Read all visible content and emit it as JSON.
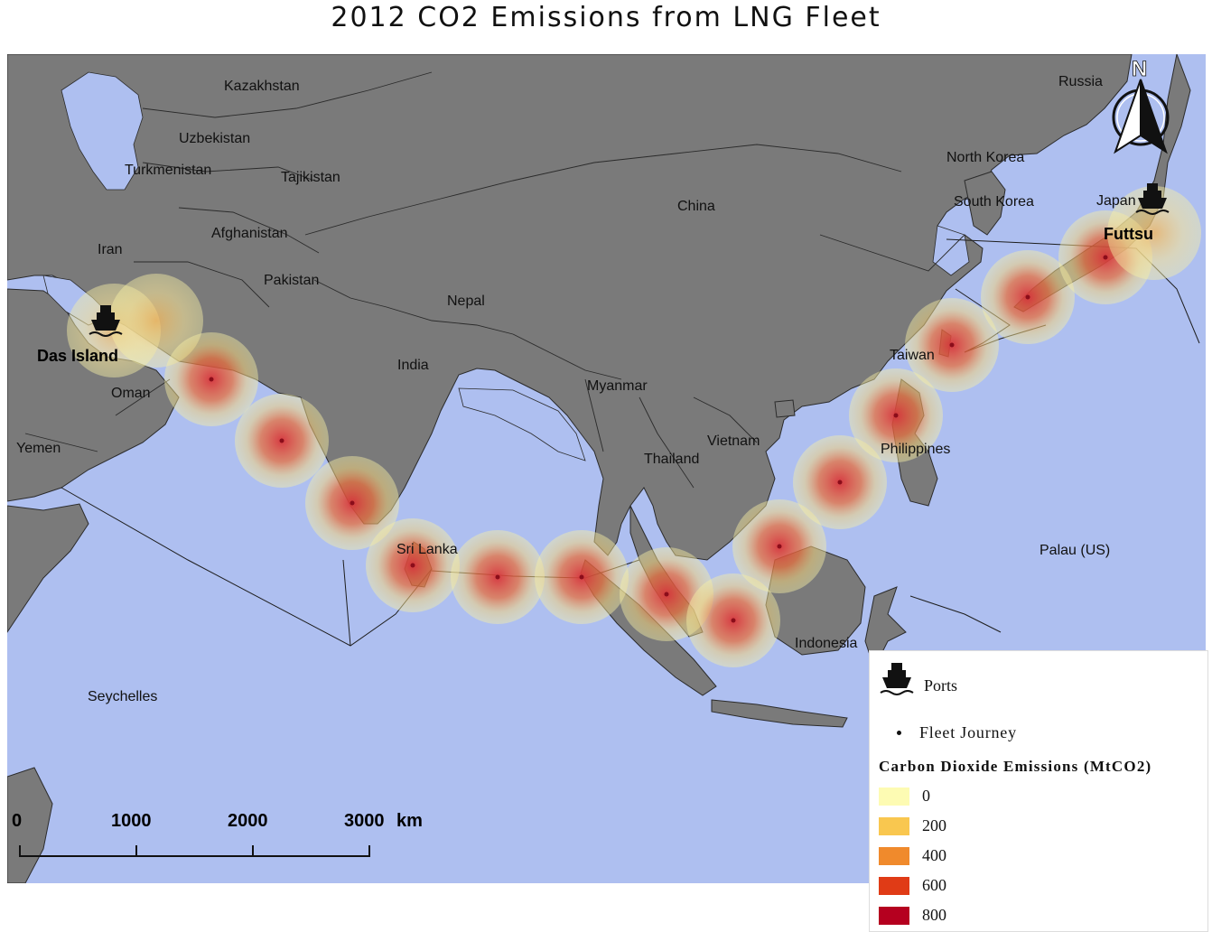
{
  "title": "2012 CO2 Emissions from LNG Fleet",
  "colors": {
    "ocean": "#aebff0",
    "land": "#7a7a7a",
    "border": "#2b2b2b"
  },
  "labels": {
    "kazakhstan": "Kazakhstan",
    "uzbekistan": "Uzbekistan",
    "turkmenistan": "Turkmenistan",
    "tajikistan": "Tajikistan",
    "afghanistan": "Afghanistan",
    "iran": "Iran",
    "pakistan": "Pakistan",
    "nepal": "Nepal",
    "china": "China",
    "india": "India",
    "oman": "Oman",
    "yemen": "Yemen",
    "myanmar": "Myanmar",
    "thailand": "Thailand",
    "vietnam": "Vietnam",
    "sri_lanka": "Sri Lanka",
    "seychelles": "Seychelles",
    "indonesia": "Indonesia",
    "philippines": "Philippines",
    "taiwan": "Taiwan",
    "palau": "Palau (US)",
    "south_korea": "South Korea",
    "north_korea": "North Korea",
    "japan": "Japan",
    "russia": "Russia"
  },
  "ports": {
    "origin": {
      "name": "Das Island",
      "icon": "ship-icon"
    },
    "destination": {
      "name": "Futtsu",
      "icon": "ship-icon"
    }
  },
  "north_arrow": {
    "letter": "N",
    "icon": "north-arrow-icon"
  },
  "scale_bar": {
    "ticks": [
      "0",
      "1000",
      "2000",
      "3000"
    ],
    "unit": "km"
  },
  "emissions": {
    "journey_points": 18
  },
  "legend": {
    "ports_label": "Ports",
    "journey_label": "Fleet Journey",
    "emissions_title": "Carbon Dioxide Emissions (MtCO2)",
    "classes": [
      {
        "value": "0",
        "color": "#fdfbb3"
      },
      {
        "value": "200",
        "color": "#f9c74f"
      },
      {
        "value": "400",
        "color": "#f08a2c"
      },
      {
        "value": "600",
        "color": "#e03b16"
      },
      {
        "value": "800",
        "color": "#b5001f"
      }
    ]
  }
}
